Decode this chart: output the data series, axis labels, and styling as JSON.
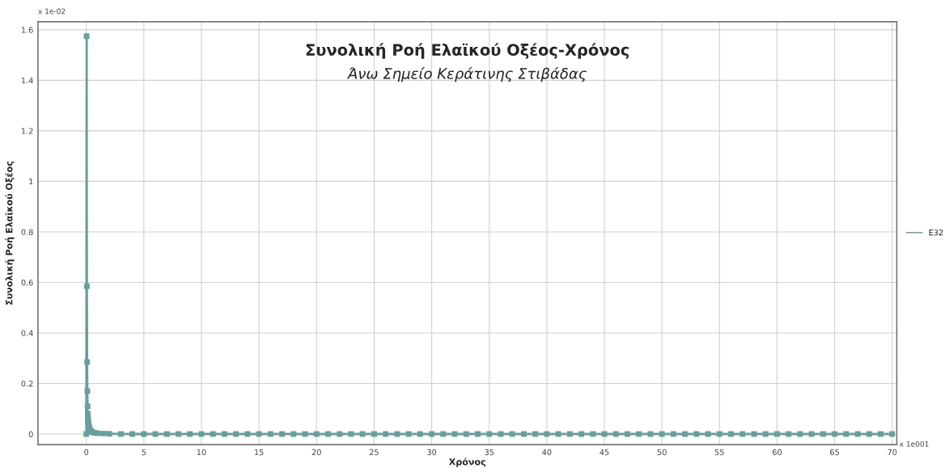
{
  "chart_data": {
    "type": "line",
    "title": "Συνολική Ροή Ελαϊκού Οξέος-Χρόνος",
    "subtitle": "Άνω Σημείο Κεράτινης Στιβάδας",
    "xlabel": "Χρόνος",
    "ylabel": "Συνολική Ροή Ελαϊκού Οξέος",
    "annotations": [
      "x 1e-02",
      "x 1e001"
    ],
    "series": [
      {
        "name": "E32",
        "color": "#6a9e9c",
        "x": [
          0,
          0.03,
          0.05,
          0.07,
          0.09,
          0.11,
          0.13,
          0.15,
          0.17,
          0.2,
          0.25,
          0.3,
          0.4,
          0.5,
          0.7,
          1,
          1.5,
          2,
          3,
          4,
          5,
          6,
          7,
          8,
          9,
          10,
          11,
          12,
          13,
          14,
          15,
          16,
          17,
          18,
          19,
          20,
          21,
          22,
          23,
          24,
          25,
          26,
          27,
          28,
          29,
          30,
          31,
          32,
          33,
          34,
          35,
          36,
          37,
          38,
          39,
          40,
          41,
          42,
          43,
          44,
          45,
          46,
          47,
          48,
          49,
          50,
          51,
          52,
          53,
          54,
          55,
          56,
          57,
          58,
          59,
          60,
          61,
          62,
          63,
          64,
          65,
          66,
          67,
          68,
          69,
          70
        ],
        "values": [
          0,
          1.575,
          0.585,
          0.285,
          0.17,
          0.11,
          0.08,
          0.06,
          0.05,
          0.04,
          0.03,
          0.02,
          0.012,
          0.008,
          0.005,
          0.003,
          0.002,
          0.001,
          0,
          0,
          0,
          0,
          0,
          0,
          0,
          0,
          0,
          0,
          0,
          0,
          0,
          0,
          0,
          0,
          0,
          0,
          0,
          0,
          0,
          0,
          0,
          0,
          0,
          0,
          0,
          0,
          0,
          0,
          0,
          0,
          0,
          0,
          0,
          0,
          0,
          0,
          0,
          0,
          0,
          0,
          0,
          0,
          0,
          0,
          0,
          0,
          0,
          0,
          0,
          0,
          0,
          0,
          0,
          0,
          0,
          0,
          0,
          0,
          0,
          0,
          0,
          0,
          0,
          0,
          0,
          0
        ]
      }
    ],
    "xlim": [
      -4.2,
      70.4
    ],
    "ylim": [
      -0.042,
      1.632
    ],
    "xticks": [
      0,
      5,
      10,
      15,
      20,
      25,
      30,
      35,
      40,
      45,
      50,
      55,
      60,
      65,
      70
    ],
    "yticks": [
      0,
      0.2,
      0.4,
      0.6,
      0.8,
      1,
      1.2,
      1.4,
      1.6
    ],
    "grid": true,
    "legend": "right",
    "marker": "square",
    "line_style": "solid"
  }
}
